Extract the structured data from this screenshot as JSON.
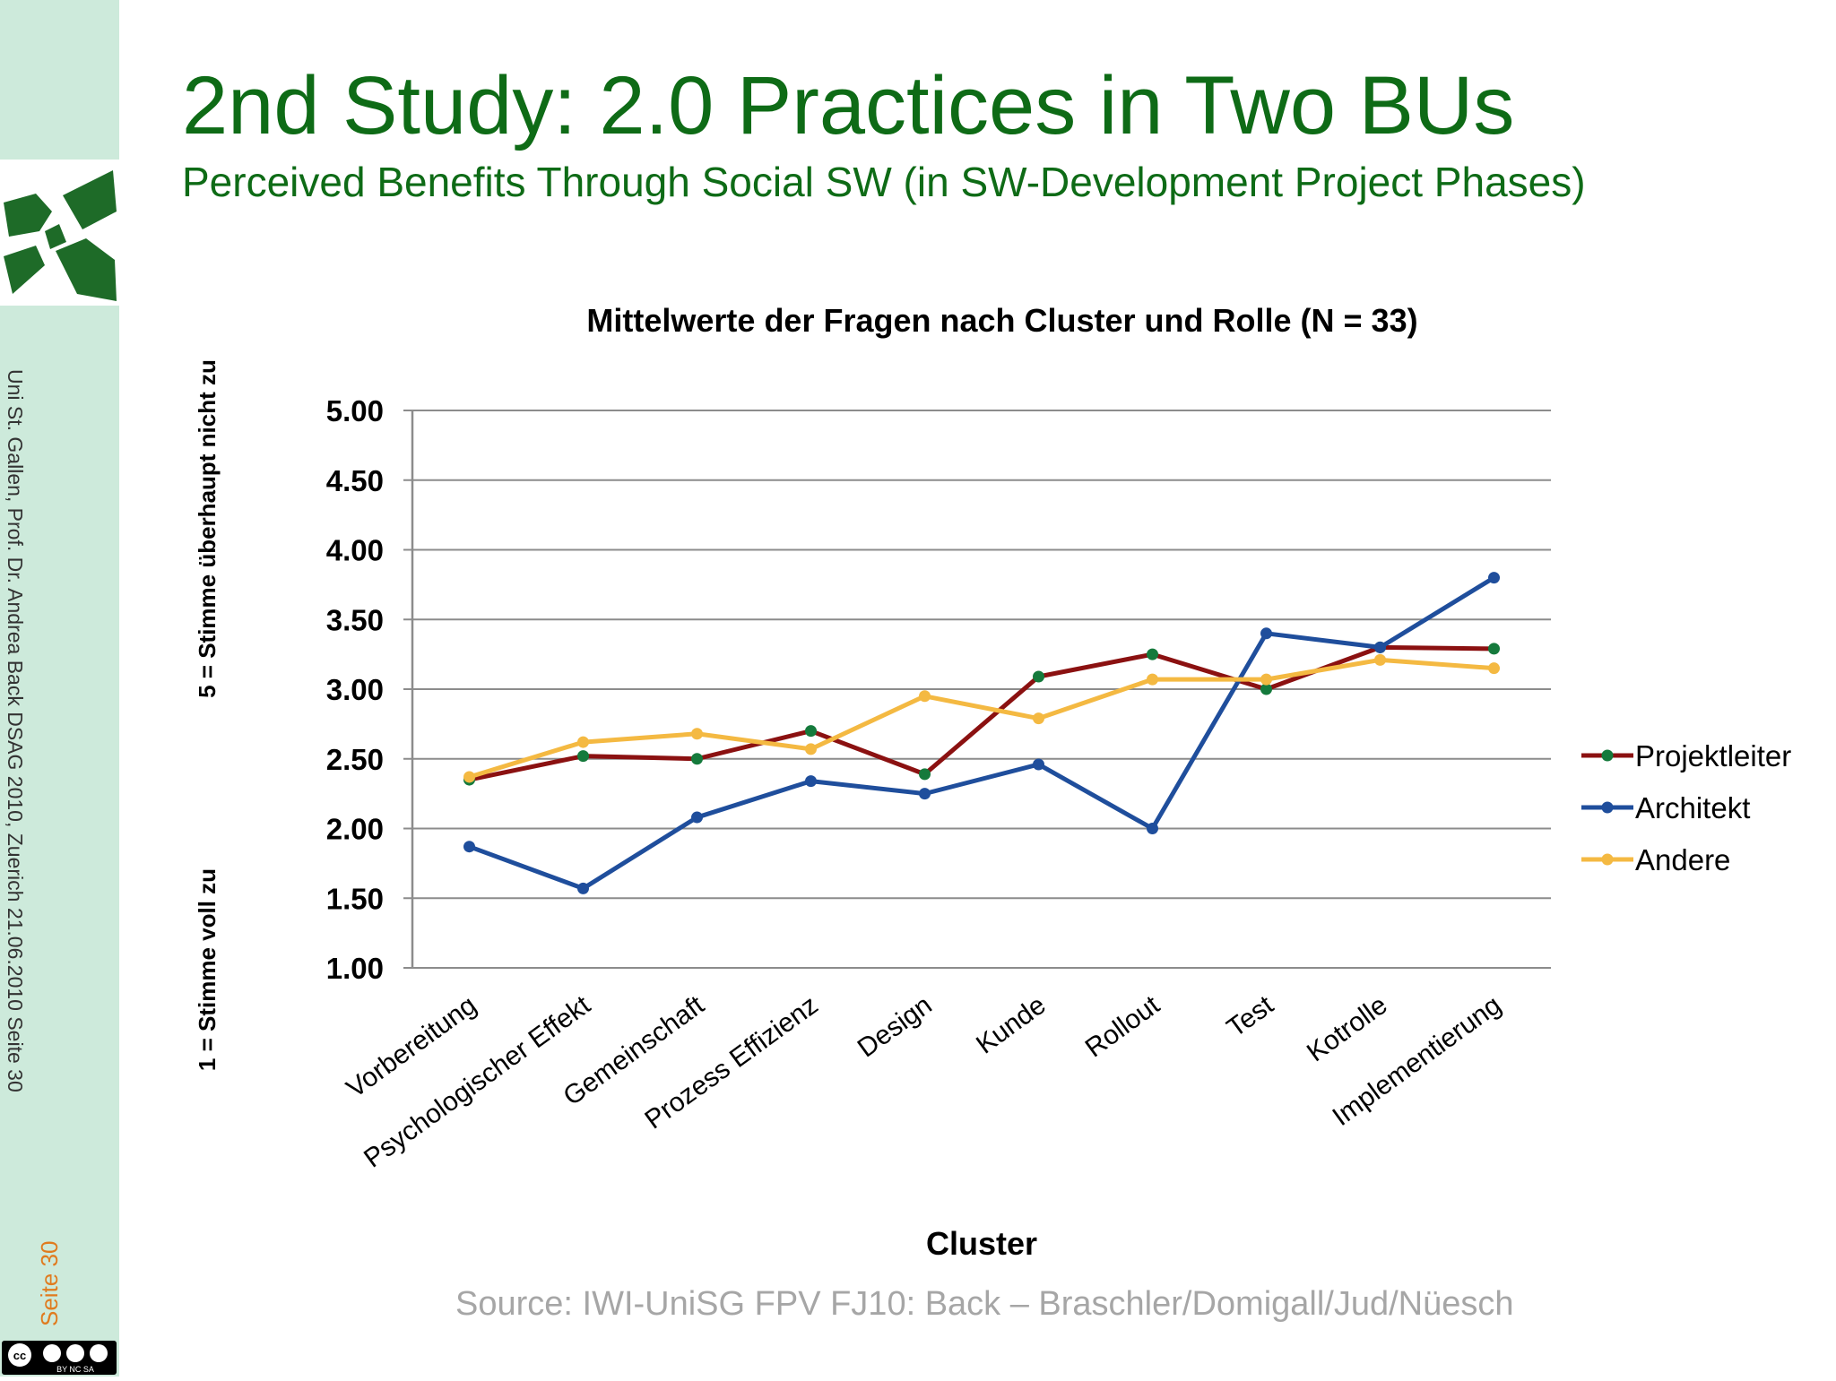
{
  "slide": {
    "title": "2nd Study: 2.0 Practices in Two BUs",
    "subtitle": "Perceived Benefits Through Social SW  (in SW-Development Project Phases)",
    "source": "Source: IWI-UniSG FPV FJ10: Back – Braschler/Domigall/Jud/Nüesch"
  },
  "sidebar": {
    "footer_text": "Uni St. Gallen, Prof. Dr. Andrea Back     DSAG  2010, Zuerich     21.06.2010     Seite 30",
    "page_number": "Seite 30",
    "license_badge": "BY NC SA",
    "colors": {
      "band": "#cdeadb",
      "logo": "#1e6b28",
      "page_number": "#e07b1f"
    }
  },
  "chart_data": {
    "type": "line",
    "title": "Mittelwerte der Fragen nach Cluster und Rolle (N = 33)",
    "xlabel": "Cluster",
    "ylabel_top": "5 = Stimme überhaupt nicht zu",
    "ylabel_bottom": "1 = Stimme voll zu",
    "ylim": [
      1.0,
      5.0
    ],
    "yticks": [
      "1.00",
      "1.50",
      "2.00",
      "2.50",
      "3.00",
      "3.50",
      "4.00",
      "4.50",
      "5.00"
    ],
    "grid": true,
    "legend_position": "right",
    "categories": [
      "Vorbereitung",
      "Psychologischer Effekt",
      "Gemeinschaft",
      "Prozess Effizienz",
      "Design",
      "Kunde",
      "Rollout",
      "Test",
      "Kotrolle",
      "Implementierung"
    ],
    "series": [
      {
        "name": "Projektleiter",
        "color": "#8b1111",
        "marker_color": "#157a3c",
        "values": [
          2.35,
          2.52,
          2.5,
          2.7,
          2.39,
          3.09,
          3.25,
          3.0,
          3.3,
          3.29
        ]
      },
      {
        "name": "Architekt",
        "color": "#1f4e9c",
        "marker_color": "#1f4e9c",
        "values": [
          1.87,
          1.57,
          2.08,
          2.34,
          2.25,
          2.46,
          2.0,
          3.4,
          3.3,
          3.8
        ]
      },
      {
        "name": "Andere",
        "color": "#f4b942",
        "marker_color": "#f4b942",
        "values": [
          2.37,
          2.62,
          2.68,
          2.57,
          2.95,
          2.79,
          3.07,
          3.07,
          3.21,
          3.15
        ]
      }
    ]
  }
}
